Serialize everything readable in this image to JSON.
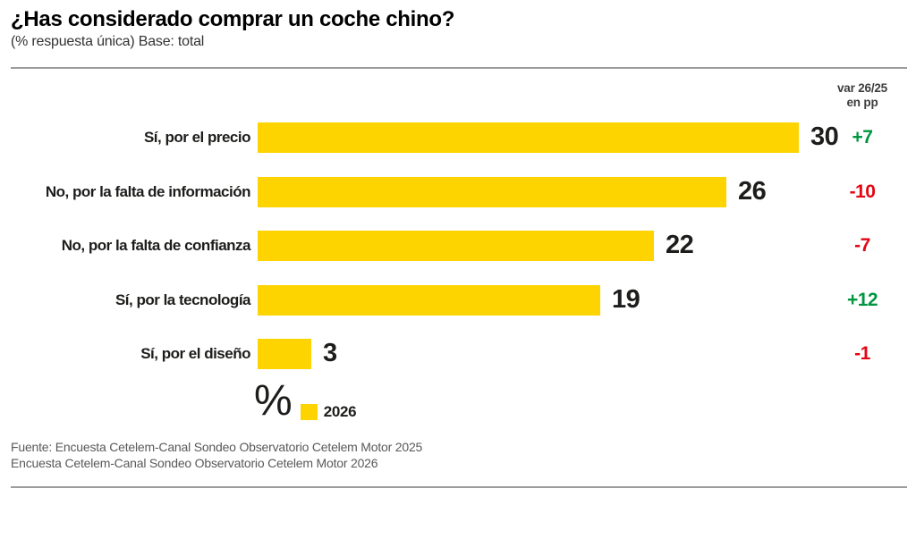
{
  "header": {
    "title": "¿Has considerado comprar un coche chino?",
    "subtitle": "(% respuesta única) Base: total"
  },
  "var_header": {
    "line1": "var 26/25",
    "line2": "en pp"
  },
  "chart_data": {
    "type": "bar",
    "orientation": "horizontal",
    "unit": "%",
    "title": "¿Has considerado comprar un coche chino?",
    "subtitle": "(% respuesta única) Base: total",
    "categories": [
      "Sí, por el precio",
      "No, por la falta de información",
      "No, por la falta de confianza",
      "Sí, por la tecnología",
      "Sí, por el diseño"
    ],
    "series": [
      {
        "name": "2026",
        "values": [
          30,
          26,
          22,
          19,
          3
        ]
      }
    ],
    "variation_26_25_pp": [
      "+7",
      "-10",
      "-7",
      "+12",
      "-1"
    ],
    "xlim": [
      0,
      32
    ],
    "grid": false,
    "legend_position": "bottom",
    "value_labels": true
  },
  "legend": {
    "percent_symbol": "%",
    "label": "2026"
  },
  "footer": {
    "source_line1": "Fuente: Encuesta Cetelem-Canal Sondeo Observatorio Cetelem Motor 2025",
    "source_line2": "Encuesta Cetelem-Canal Sondeo Observatorio Cetelem Motor 2026"
  },
  "colors": {
    "bar": "#FDD400",
    "positive": "#009640",
    "negative": "#E30613",
    "rule": "#9C9C9C",
    "text": "#1D1D1B",
    "source_text": "#595959"
  }
}
